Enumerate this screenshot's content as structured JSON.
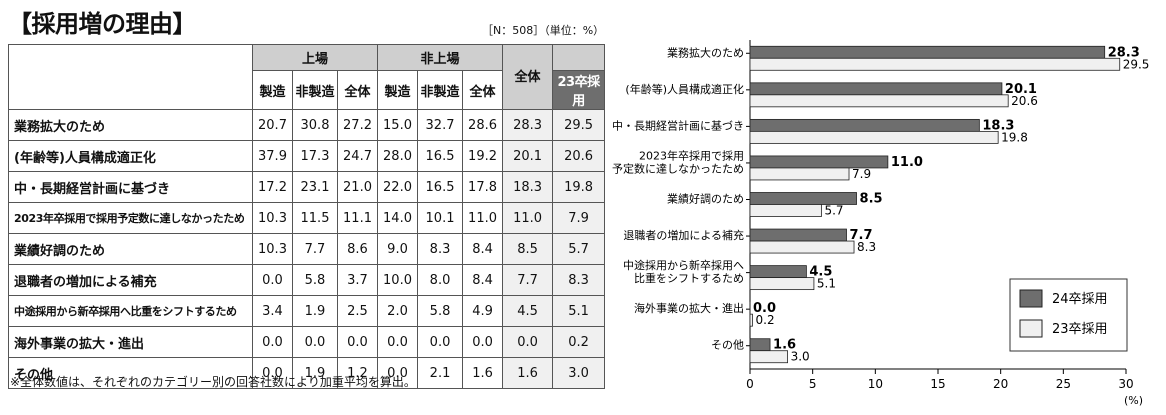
{
  "title": "【採用増の理由】",
  "note_n": "［N：508］（単位：%）",
  "table": {
    "header_listed": "上場",
    "header_unlisted": "非上場",
    "header_total": "全体",
    "sub_listed": [
      "製造",
      "非製造",
      "全体"
    ],
    "sub_unlisted": [
      "製造",
      "非製造",
      "全体"
    ],
    "sub_last": "23卒採用",
    "rows": [
      {
        "label": "業務拡大のため",
        "small": false,
        "values": [
          "20.7",
          "30.8",
          "27.2",
          "15.0",
          "32.7",
          "28.6",
          "28.3",
          "29.5"
        ]
      },
      {
        "label": "(年齢等)人員構成適正化",
        "small": false,
        "values": [
          "37.9",
          "17.3",
          "24.7",
          "28.0",
          "16.5",
          "19.2",
          "20.1",
          "20.6"
        ]
      },
      {
        "label": "中・長期経営計画に基づき",
        "small": false,
        "values": [
          "17.2",
          "23.1",
          "21.0",
          "22.0",
          "16.5",
          "17.8",
          "18.3",
          "19.8"
        ]
      },
      {
        "label": "2023年卒採用で採用予定数に達しなかったため",
        "small": true,
        "values": [
          "10.3",
          "11.5",
          "11.1",
          "14.0",
          "10.1",
          "11.0",
          "11.0",
          "7.9"
        ]
      },
      {
        "label": "業績好調のため",
        "small": false,
        "values": [
          "10.3",
          "7.7",
          "8.6",
          "9.0",
          "8.3",
          "8.4",
          "8.5",
          "5.7"
        ]
      },
      {
        "label": "退職者の増加による補充",
        "small": false,
        "values": [
          "0.0",
          "5.8",
          "3.7",
          "10.0",
          "8.0",
          "8.4",
          "7.7",
          "8.3"
        ]
      },
      {
        "label": "中途採用から新卒採用へ比重をシフトするため",
        "small": true,
        "values": [
          "3.4",
          "1.9",
          "2.5",
          "2.0",
          "5.8",
          "4.9",
          "4.5",
          "5.1"
        ]
      },
      {
        "label": "海外事業の拡大・進出",
        "small": false,
        "values": [
          "0.0",
          "0.0",
          "0.0",
          "0.0",
          "0.0",
          "0.0",
          "0.0",
          "0.2"
        ]
      },
      {
        "label": "その他",
        "small": false,
        "values": [
          "0.0",
          "1.9",
          "1.2",
          "0.0",
          "2.1",
          "1.6",
          "1.6",
          "3.0"
        ]
      }
    ]
  },
  "footnote": "※全体数値は、それぞれのカテゴリー別の回答社数により加重平均を算出。",
  "chart_data": {
    "type": "bar",
    "orientation": "horizontal",
    "categories": [
      [
        "業務拡大のため"
      ],
      [
        "(年齢等)人員構成適正化"
      ],
      [
        "中・長期経営計画に基づき"
      ],
      [
        "2023年卒採用で採用",
        "予定数に達しなかったため"
      ],
      [
        "業績好調のため"
      ],
      [
        "退職者の増加による補充"
      ],
      [
        "中途採用から新卒採用へ",
        "比重をシフトするため"
      ],
      [
        "海外事業の拡大・進出"
      ],
      [
        "その他"
      ]
    ],
    "series": [
      {
        "name": "24卒採用",
        "color": "#6e6e6e",
        "values": [
          28.3,
          20.1,
          18.3,
          11.0,
          8.5,
          7.7,
          4.5,
          0.0,
          1.6
        ]
      },
      {
        "name": "23卒採用",
        "color": "#f0f0f0",
        "values": [
          29.5,
          20.6,
          19.8,
          7.9,
          5.7,
          8.3,
          5.1,
          0.2,
          3.0
        ]
      }
    ],
    "xlim": [
      0,
      30
    ],
    "xticks": [
      "0",
      "5",
      "10",
      "15",
      "20",
      "25",
      "30"
    ],
    "xunit": "(%)",
    "legend_position": "bottom-right",
    "grid": false
  }
}
